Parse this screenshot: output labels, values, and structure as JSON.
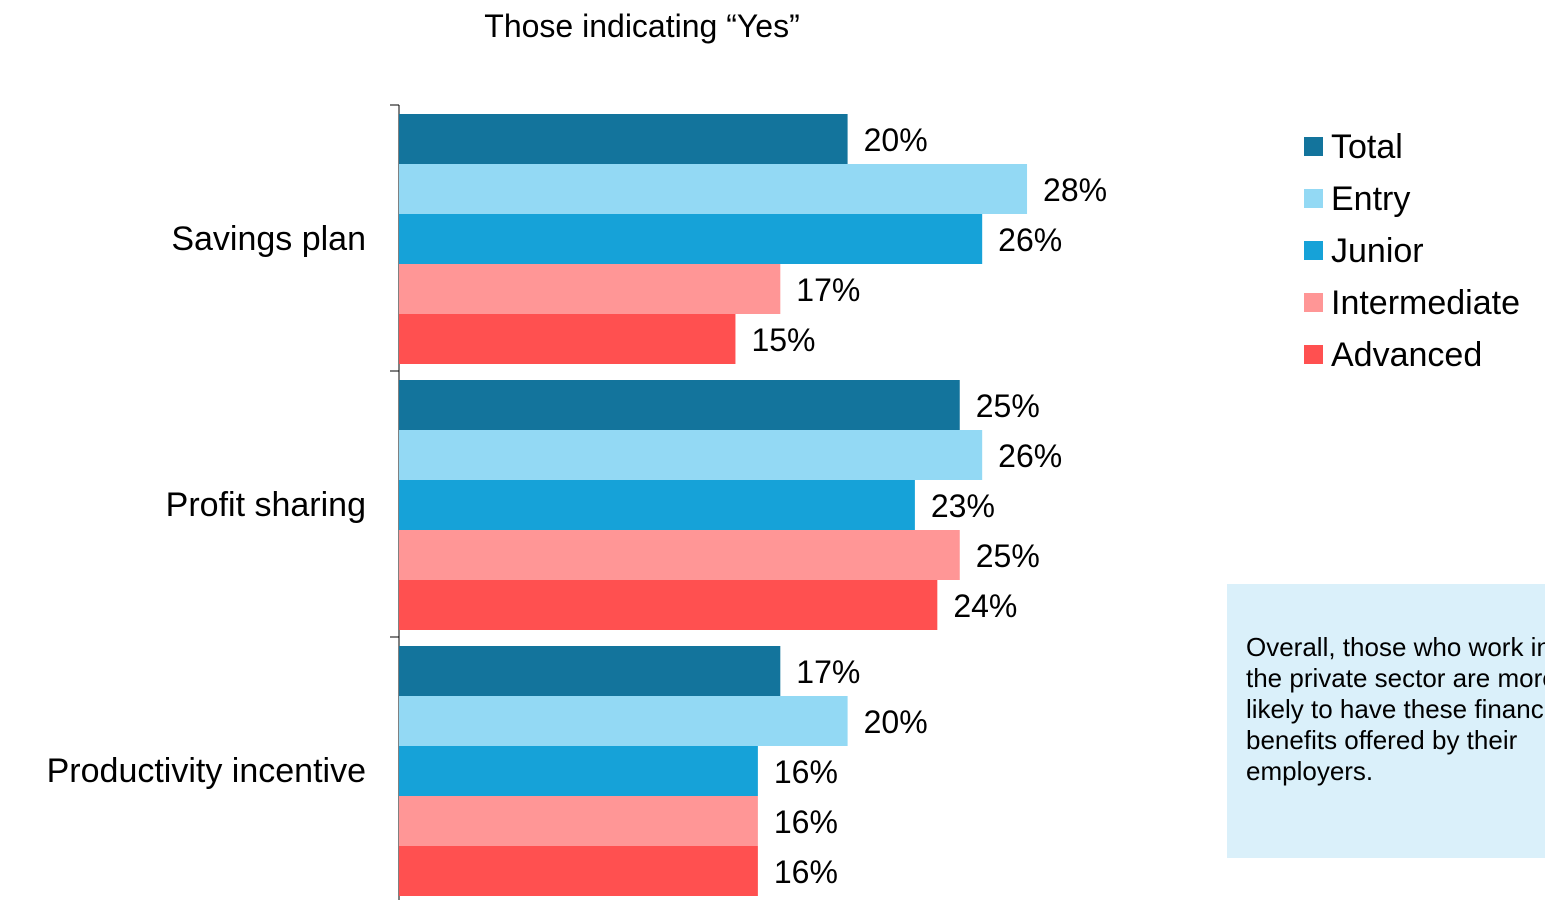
{
  "chart_data": {
    "type": "bar",
    "orientation": "horizontal",
    "title": "Those indicating “Yes”",
    "categories": [
      "Savings plan",
      "Profit sharing",
      "Productivity incentive"
    ],
    "series": [
      {
        "name": "Total",
        "color": "#13749c",
        "values": [
          20,
          25,
          17
        ],
        "labels": [
          "20%",
          "25%",
          "17%"
        ]
      },
      {
        "name": "Entry",
        "color": "#93d9f4",
        "values": [
          28,
          26,
          20
        ],
        "labels": [
          "28%",
          "26%",
          "20%"
        ]
      },
      {
        "name": "Junior",
        "color": "#16a2d8",
        "values": [
          26,
          23,
          16
        ],
        "labels": [
          "26%",
          "23%",
          "16%"
        ]
      },
      {
        "name": "Intermediate",
        "color": "#ff9696",
        "values": [
          17,
          25,
          16
        ],
        "labels": [
          "17%",
          "25%",
          "16%"
        ]
      },
      {
        "name": "Advanced",
        "color": "#ff5050",
        "values": [
          15,
          24,
          16
        ],
        "labels": [
          "15%",
          "24%",
          "16%"
        ]
      }
    ],
    "xlim": [
      0,
      35
    ],
    "grid": false,
    "legend_position": "top-right",
    "value_format": "percent"
  },
  "callout": {
    "text": "Overall, those who work in the private sector are more likely to have these financial benefits offered by their employers."
  }
}
